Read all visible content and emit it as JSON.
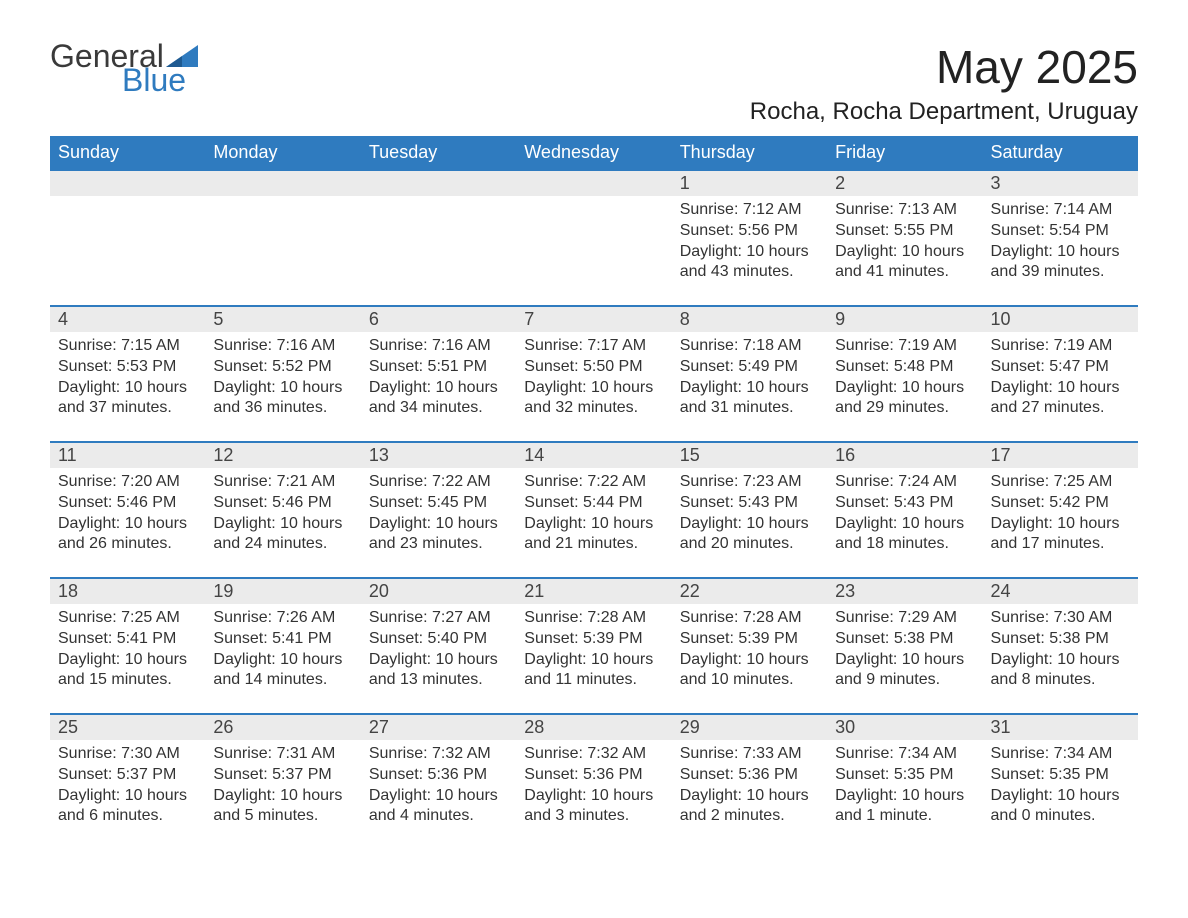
{
  "logo": {
    "text1": "General",
    "text2": "Blue"
  },
  "title": "May 2025",
  "location": "Rocha, Rocha Department, Uruguay",
  "colors": {
    "header_bg": "#2f7bbf",
    "header_text": "#ffffff",
    "daynum_bg": "#ebebeb",
    "row_divider": "#2f7bbf",
    "page_bg": "#ffffff",
    "text": "#333333",
    "logo_accent": "#2f7bbf"
  },
  "typography": {
    "title_fontsize": 46,
    "location_fontsize": 24,
    "header_fontsize": 18,
    "daynum_fontsize": 18,
    "cell_fontsize": 16,
    "font_family": "Segoe UI"
  },
  "layout": {
    "columns": 7,
    "weeks": 5,
    "first_day_column_index": 4,
    "days_in_month": 31
  },
  "weekdays": [
    "Sunday",
    "Monday",
    "Tuesday",
    "Wednesday",
    "Thursday",
    "Friday",
    "Saturday"
  ],
  "days": [
    {
      "n": 1,
      "sunrise": "7:12 AM",
      "sunset": "5:56 PM",
      "daylight": "10 hours and 43 minutes."
    },
    {
      "n": 2,
      "sunrise": "7:13 AM",
      "sunset": "5:55 PM",
      "daylight": "10 hours and 41 minutes."
    },
    {
      "n": 3,
      "sunrise": "7:14 AM",
      "sunset": "5:54 PM",
      "daylight": "10 hours and 39 minutes."
    },
    {
      "n": 4,
      "sunrise": "7:15 AM",
      "sunset": "5:53 PM",
      "daylight": "10 hours and 37 minutes."
    },
    {
      "n": 5,
      "sunrise": "7:16 AM",
      "sunset": "5:52 PM",
      "daylight": "10 hours and 36 minutes."
    },
    {
      "n": 6,
      "sunrise": "7:16 AM",
      "sunset": "5:51 PM",
      "daylight": "10 hours and 34 minutes."
    },
    {
      "n": 7,
      "sunrise": "7:17 AM",
      "sunset": "5:50 PM",
      "daylight": "10 hours and 32 minutes."
    },
    {
      "n": 8,
      "sunrise": "7:18 AM",
      "sunset": "5:49 PM",
      "daylight": "10 hours and 31 minutes."
    },
    {
      "n": 9,
      "sunrise": "7:19 AM",
      "sunset": "5:48 PM",
      "daylight": "10 hours and 29 minutes."
    },
    {
      "n": 10,
      "sunrise": "7:19 AM",
      "sunset": "5:47 PM",
      "daylight": "10 hours and 27 minutes."
    },
    {
      "n": 11,
      "sunrise": "7:20 AM",
      "sunset": "5:46 PM",
      "daylight": "10 hours and 26 minutes."
    },
    {
      "n": 12,
      "sunrise": "7:21 AM",
      "sunset": "5:46 PM",
      "daylight": "10 hours and 24 minutes."
    },
    {
      "n": 13,
      "sunrise": "7:22 AM",
      "sunset": "5:45 PM",
      "daylight": "10 hours and 23 minutes."
    },
    {
      "n": 14,
      "sunrise": "7:22 AM",
      "sunset": "5:44 PM",
      "daylight": "10 hours and 21 minutes."
    },
    {
      "n": 15,
      "sunrise": "7:23 AM",
      "sunset": "5:43 PM",
      "daylight": "10 hours and 20 minutes."
    },
    {
      "n": 16,
      "sunrise": "7:24 AM",
      "sunset": "5:43 PM",
      "daylight": "10 hours and 18 minutes."
    },
    {
      "n": 17,
      "sunrise": "7:25 AM",
      "sunset": "5:42 PM",
      "daylight": "10 hours and 17 minutes."
    },
    {
      "n": 18,
      "sunrise": "7:25 AM",
      "sunset": "5:41 PM",
      "daylight": "10 hours and 15 minutes."
    },
    {
      "n": 19,
      "sunrise": "7:26 AM",
      "sunset": "5:41 PM",
      "daylight": "10 hours and 14 minutes."
    },
    {
      "n": 20,
      "sunrise": "7:27 AM",
      "sunset": "5:40 PM",
      "daylight": "10 hours and 13 minutes."
    },
    {
      "n": 21,
      "sunrise": "7:28 AM",
      "sunset": "5:39 PM",
      "daylight": "10 hours and 11 minutes."
    },
    {
      "n": 22,
      "sunrise": "7:28 AM",
      "sunset": "5:39 PM",
      "daylight": "10 hours and 10 minutes."
    },
    {
      "n": 23,
      "sunrise": "7:29 AM",
      "sunset": "5:38 PM",
      "daylight": "10 hours and 9 minutes."
    },
    {
      "n": 24,
      "sunrise": "7:30 AM",
      "sunset": "5:38 PM",
      "daylight": "10 hours and 8 minutes."
    },
    {
      "n": 25,
      "sunrise": "7:30 AM",
      "sunset": "5:37 PM",
      "daylight": "10 hours and 6 minutes."
    },
    {
      "n": 26,
      "sunrise": "7:31 AM",
      "sunset": "5:37 PM",
      "daylight": "10 hours and 5 minutes."
    },
    {
      "n": 27,
      "sunrise": "7:32 AM",
      "sunset": "5:36 PM",
      "daylight": "10 hours and 4 minutes."
    },
    {
      "n": 28,
      "sunrise": "7:32 AM",
      "sunset": "5:36 PM",
      "daylight": "10 hours and 3 minutes."
    },
    {
      "n": 29,
      "sunrise": "7:33 AM",
      "sunset": "5:36 PM",
      "daylight": "10 hours and 2 minutes."
    },
    {
      "n": 30,
      "sunrise": "7:34 AM",
      "sunset": "5:35 PM",
      "daylight": "10 hours and 1 minute."
    },
    {
      "n": 31,
      "sunrise": "7:34 AM",
      "sunset": "5:35 PM",
      "daylight": "10 hours and 0 minutes."
    }
  ],
  "labels": {
    "sunrise_prefix": "Sunrise: ",
    "sunset_prefix": "Sunset: ",
    "daylight_prefix": "Daylight: "
  }
}
